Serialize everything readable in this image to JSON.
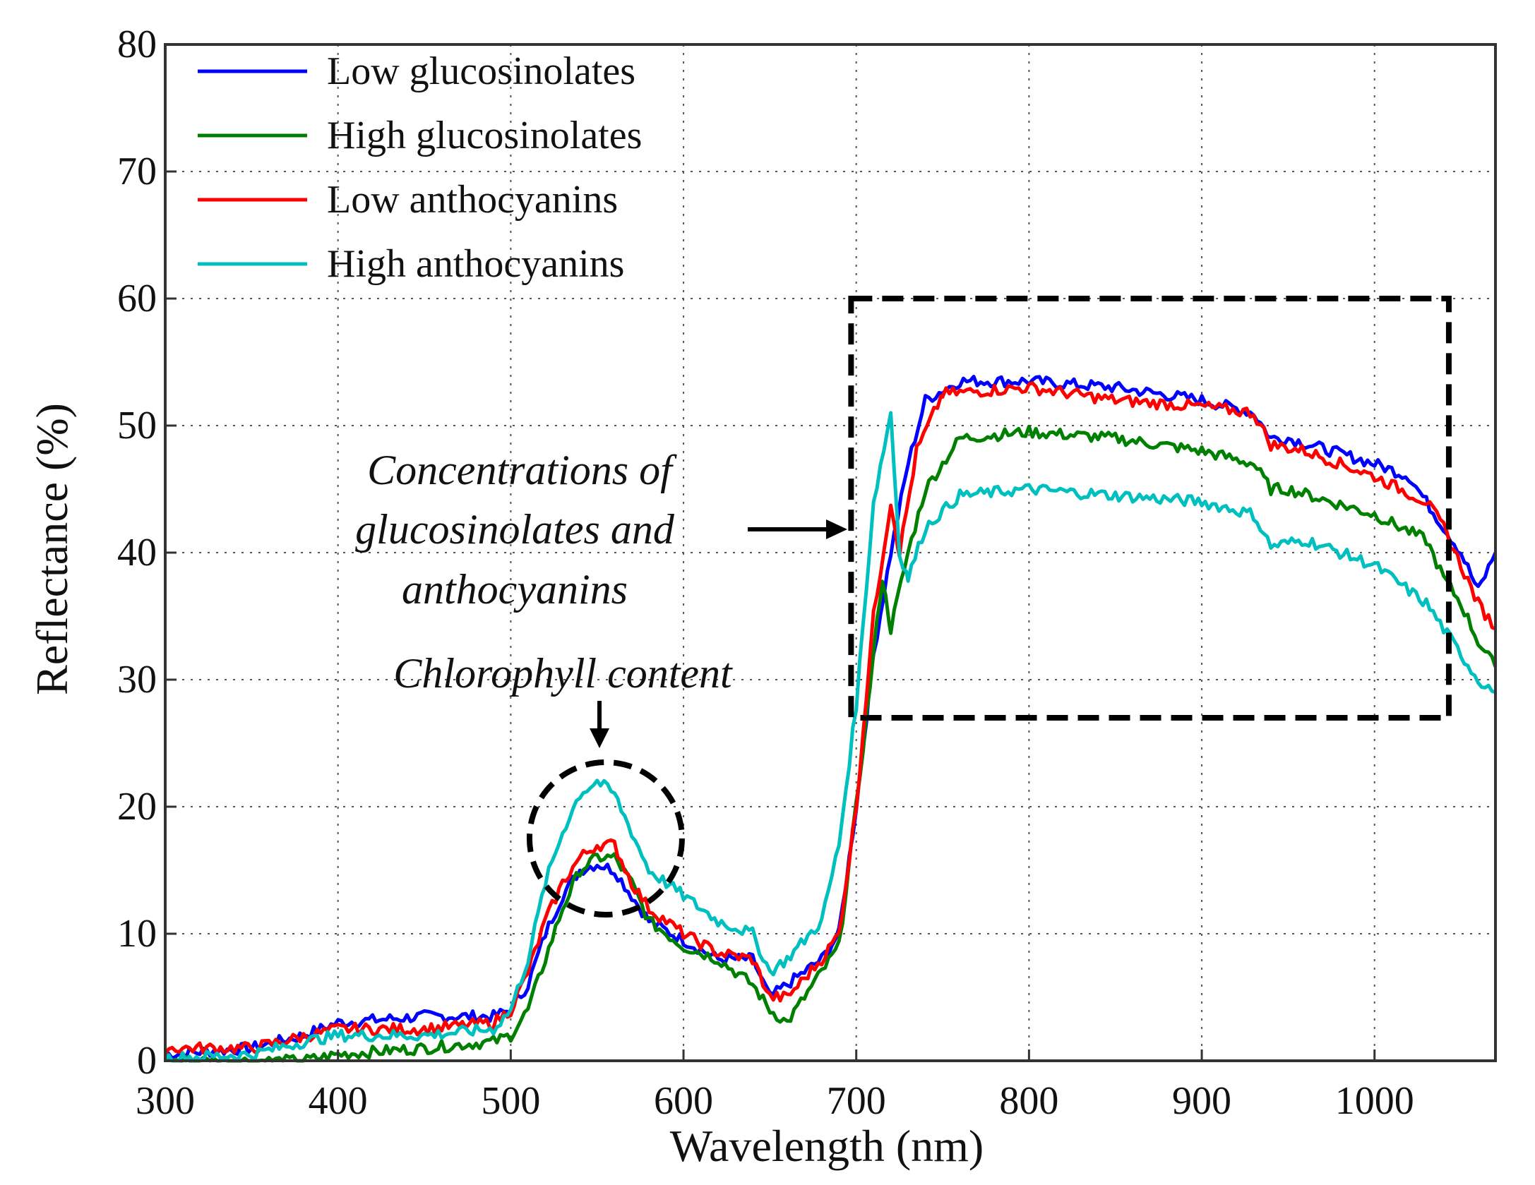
{
  "chart_data": {
    "type": "line",
    "title": "",
    "xlabel": "Wavelength (nm)",
    "ylabel": "Reflectance (%)",
    "xlim": [
      300,
      1070
    ],
    "ylim": [
      0,
      80
    ],
    "xticks": [
      300,
      400,
      500,
      600,
      700,
      800,
      900,
      1000
    ],
    "yticks": [
      0,
      10,
      20,
      30,
      40,
      50,
      60,
      70,
      80
    ],
    "grid": true,
    "legend_position": "top-left",
    "series": [
      {
        "name": "Low glucosinolates",
        "color": "#0000ff",
        "x": [
          300,
          350,
          380,
          400,
          450,
          490,
          500,
          510,
          520,
          530,
          540,
          550,
          560,
          570,
          580,
          600,
          620,
          640,
          650,
          660,
          680,
          690,
          700,
          710,
          720,
          730,
          740,
          760,
          800,
          850,
          900,
          930,
          940,
          950,
          1000,
          1020,
          1040,
          1050,
          1060,
          1070
        ],
        "y": [
          0.5,
          1,
          2,
          3,
          3.5,
          3.5,
          4,
          6,
          10,
          13,
          15,
          15.5,
          15,
          13,
          11,
          9.5,
          8,
          8,
          5,
          6,
          8,
          10,
          20,
          32,
          40,
          47,
          52,
          53.5,
          53.5,
          53,
          52,
          51,
          49,
          49,
          47,
          46,
          42,
          40,
          37,
          40
        ]
      },
      {
        "name": "High glucosinolates",
        "color": "#008000",
        "x": [
          300,
          380,
          400,
          450,
          490,
          500,
          510,
          520,
          530,
          540,
          550,
          560,
          570,
          580,
          600,
          620,
          640,
          650,
          660,
          670,
          690,
          700,
          710,
          715,
          720,
          730,
          740,
          760,
          800,
          850,
          900,
          930,
          940,
          950,
          1000,
          1030,
          1040,
          1050,
          1060,
          1070
        ],
        "y": [
          0,
          0,
          0.5,
          1,
          1.5,
          2,
          4,
          8,
          12,
          15,
          16,
          16,
          14,
          11,
          9,
          8,
          6,
          4,
          3,
          5,
          9,
          20,
          32,
          38,
          34,
          40,
          45,
          49,
          49.5,
          49,
          48,
          47,
          45,
          45,
          43,
          41,
          38,
          36,
          33,
          31
        ]
      },
      {
        "name": "Low anthocyanins",
        "color": "#ff0000",
        "x": [
          300,
          350,
          400,
          450,
          490,
          500,
          510,
          520,
          530,
          540,
          550,
          560,
          570,
          580,
          600,
          620,
          640,
          650,
          660,
          680,
          690,
          700,
          710,
          720,
          725,
          735,
          750,
          800,
          850,
          900,
          930,
          940,
          960,
          1000,
          1030,
          1040,
          1050,
          1060,
          1070
        ],
        "y": [
          1,
          1,
          2.5,
          2.5,
          3,
          4,
          7,
          11,
          14,
          16,
          17,
          17,
          14,
          12,
          10,
          8.5,
          8,
          5,
          5,
          8,
          10,
          20,
          35,
          44,
          40,
          48,
          52.5,
          53,
          52,
          51.5,
          51,
          48.5,
          48,
          46,
          44,
          42,
          39,
          36,
          34
        ]
      },
      {
        "name": "High anthocyanins",
        "color": "#00bfbf",
        "x": [
          300,
          350,
          380,
          400,
          450,
          490,
          500,
          510,
          520,
          530,
          540,
          550,
          560,
          570,
          580,
          600,
          620,
          640,
          650,
          660,
          680,
          690,
          700,
          710,
          720,
          725,
          730,
          740,
          760,
          800,
          850,
          900,
          930,
          940,
          960,
          1000,
          1030,
          1040,
          1050,
          1060,
          1070
        ],
        "y": [
          0.2,
          0.5,
          1.5,
          2,
          2,
          2.5,
          4,
          8,
          14,
          18,
          21,
          22,
          21,
          18,
          15,
          13,
          11,
          10,
          7,
          8,
          11,
          17,
          28,
          44,
          51,
          40,
          38,
          42,
          44.5,
          45,
          44.5,
          44,
          43,
          40.5,
          41,
          39,
          36,
          34,
          32,
          30,
          29
        ]
      }
    ],
    "annotations": [
      {
        "type": "dashed-box",
        "x_range": [
          697,
          1043
        ],
        "y_range": [
          27,
          60
        ],
        "label_lines": [
          "Concentrations of",
          "glucosinolates and",
          "anthocyanins"
        ]
      },
      {
        "type": "dashed-circle",
        "center": [
          555,
          17.5
        ],
        "label": "Chlorophyll content"
      }
    ]
  }
}
